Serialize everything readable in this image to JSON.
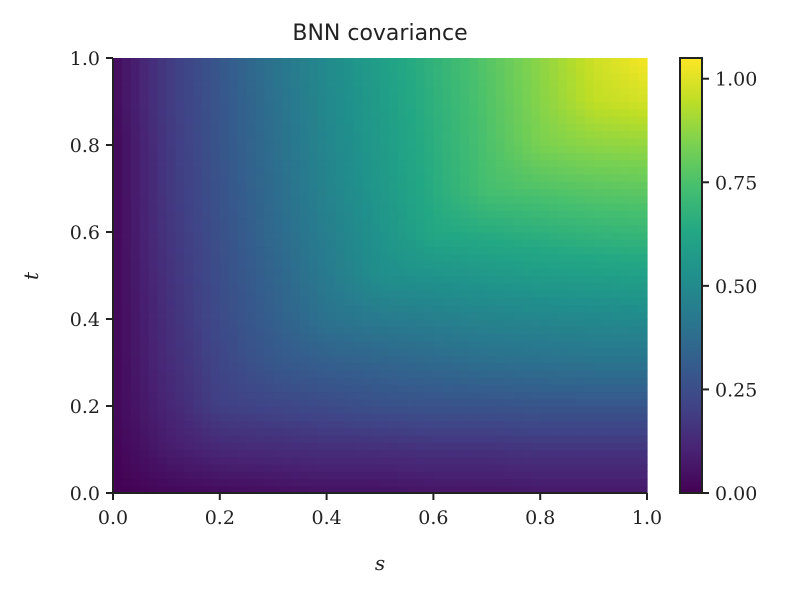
{
  "chart_data": {
    "type": "heatmap",
    "title": "BNN covariance",
    "xlabel": "s",
    "ylabel": "t",
    "xlim": [
      0,
      1
    ],
    "ylim": [
      0,
      1
    ],
    "x_ticks": [
      "0.0",
      "0.2",
      "0.4",
      "0.6",
      "0.8",
      "1.0"
    ],
    "y_ticks": [
      "0.0",
      "0.2",
      "0.4",
      "0.6",
      "0.8",
      "1.0"
    ],
    "colorbar": {
      "colormap": "viridis",
      "range": [
        0,
        1.05
      ],
      "ticks": [
        {
          "value": 0.0,
          "label": "0.00"
        },
        {
          "value": 0.25,
          "label": "0.25"
        },
        {
          "value": 0.5,
          "label": "0.50"
        },
        {
          "value": 0.75,
          "label": "0.75"
        },
        {
          "value": 1.0,
          "label": "1.00"
        }
      ]
    },
    "x": [
      0.0,
      0.1,
      0.2,
      0.3,
      0.4,
      0.5,
      0.6,
      0.7,
      0.8,
      0.9,
      1.0
    ],
    "y": [
      0.0,
      0.1,
      0.2,
      0.3,
      0.4,
      0.5,
      0.6,
      0.7,
      0.8,
      0.9,
      1.0
    ],
    "z": [
      [
        0.0,
        0.02,
        0.03,
        0.04,
        0.05,
        0.05,
        0.06,
        0.06,
        0.07,
        0.07,
        0.07
      ],
      [
        0.01,
        0.08,
        0.12,
        0.13,
        0.14,
        0.14,
        0.15,
        0.15,
        0.16,
        0.16,
        0.16
      ],
      [
        0.02,
        0.11,
        0.2,
        0.22,
        0.24,
        0.26,
        0.27,
        0.27,
        0.28,
        0.28,
        0.28
      ],
      [
        0.02,
        0.13,
        0.22,
        0.29,
        0.32,
        0.34,
        0.36,
        0.38,
        0.39,
        0.4,
        0.4
      ],
      [
        0.02,
        0.14,
        0.24,
        0.32,
        0.4,
        0.43,
        0.45,
        0.47,
        0.48,
        0.49,
        0.5
      ],
      [
        0.02,
        0.15,
        0.25,
        0.34,
        0.43,
        0.52,
        0.54,
        0.56,
        0.58,
        0.59,
        0.6
      ],
      [
        0.02,
        0.16,
        0.26,
        0.36,
        0.45,
        0.54,
        0.63,
        0.65,
        0.67,
        0.69,
        0.7
      ],
      [
        0.02,
        0.17,
        0.27,
        0.37,
        0.47,
        0.56,
        0.65,
        0.74,
        0.76,
        0.78,
        0.79
      ],
      [
        0.02,
        0.17,
        0.28,
        0.38,
        0.48,
        0.57,
        0.66,
        0.75,
        0.84,
        0.87,
        0.88
      ],
      [
        0.03,
        0.18,
        0.28,
        0.39,
        0.49,
        0.58,
        0.67,
        0.76,
        0.86,
        0.95,
        0.98
      ],
      [
        0.03,
        0.18,
        0.29,
        0.4,
        0.5,
        0.59,
        0.68,
        0.77,
        0.87,
        0.97,
        1.04
      ]
    ]
  }
}
